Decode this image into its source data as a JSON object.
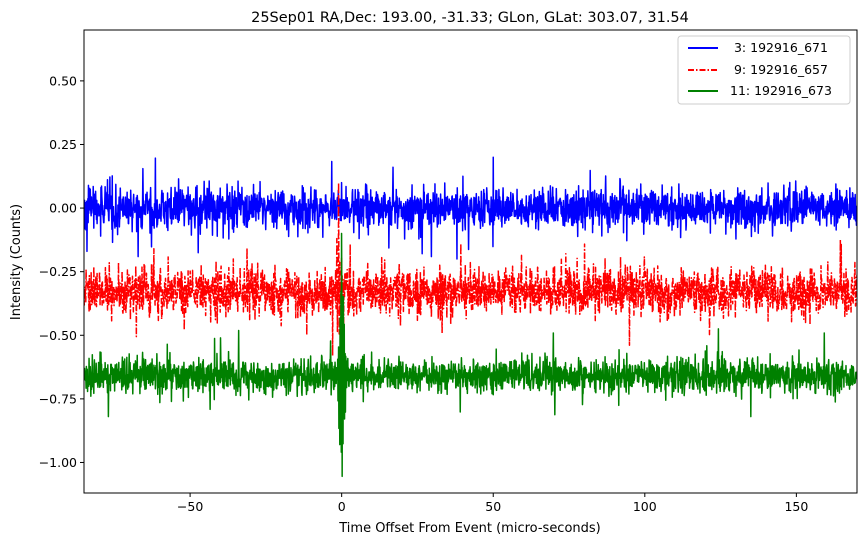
{
  "chart_data": {
    "type": "line",
    "title": "25Sep01 RA,Dec:  193.00, -31.33; GLon, GLat:  303.07,  31.54",
    "xlabel": "Time Offset From Event (micro-seconds)",
    "ylabel": "Intensity (Counts)",
    "xlim": [
      -85,
      170
    ],
    "ylim": [
      -1.12,
      0.7
    ],
    "xticks": [
      -50,
      0,
      50,
      100,
      150
    ],
    "xtick_labels": [
      "−50",
      "0",
      "50",
      "100",
      "150"
    ],
    "yticks": [
      0.5,
      0.25,
      0.0,
      -0.25,
      -0.5,
      -0.75,
      -1.0
    ],
    "ytick_labels": [
      "0.50",
      "0.25",
      "0.00",
      "−0.25",
      "−0.50",
      "−0.75",
      "−1.00"
    ],
    "legend_position": "top-right",
    "series": [
      {
        "name": "3: 192916_671",
        "legend_label": " 3: 192916_671",
        "color": "#0000ff",
        "linestyle": "solid",
        "baseline": 0.0,
        "noise_amplitude": 0.07,
        "features": [
          {
            "x": 50,
            "y": 0.2
          },
          {
            "x": 38,
            "y": -0.2
          },
          {
            "x": -84,
            "y": -0.17
          },
          {
            "x": 0,
            "y": 0.1
          }
        ]
      },
      {
        "name": "9: 192916_657",
        "legend_label": " 9: 192916_657",
        "color": "#ff0000",
        "linestyle": "dashdot",
        "baseline": -0.33,
        "noise_amplitude": 0.08,
        "features": [
          {
            "x": -3,
            "y": 0.0
          },
          {
            "x": -1,
            "y": 0.1
          },
          {
            "x": -3,
            "y": -0.58
          },
          {
            "x": 0.5,
            "y": -0.56
          }
        ]
      },
      {
        "name": "11: 192916_673",
        "legend_label": "11: 192916_673",
        "color": "#008000",
        "linestyle": "solid",
        "baseline": -0.66,
        "noise_amplitude": 0.06,
        "features": [
          {
            "x": 0,
            "y": -1.04
          },
          {
            "x": 0,
            "y": -0.1
          },
          {
            "x": -77,
            "y": -0.82
          },
          {
            "x": -40,
            "y": -0.51
          },
          {
            "x": 135,
            "y": -0.82
          }
        ]
      }
    ]
  }
}
